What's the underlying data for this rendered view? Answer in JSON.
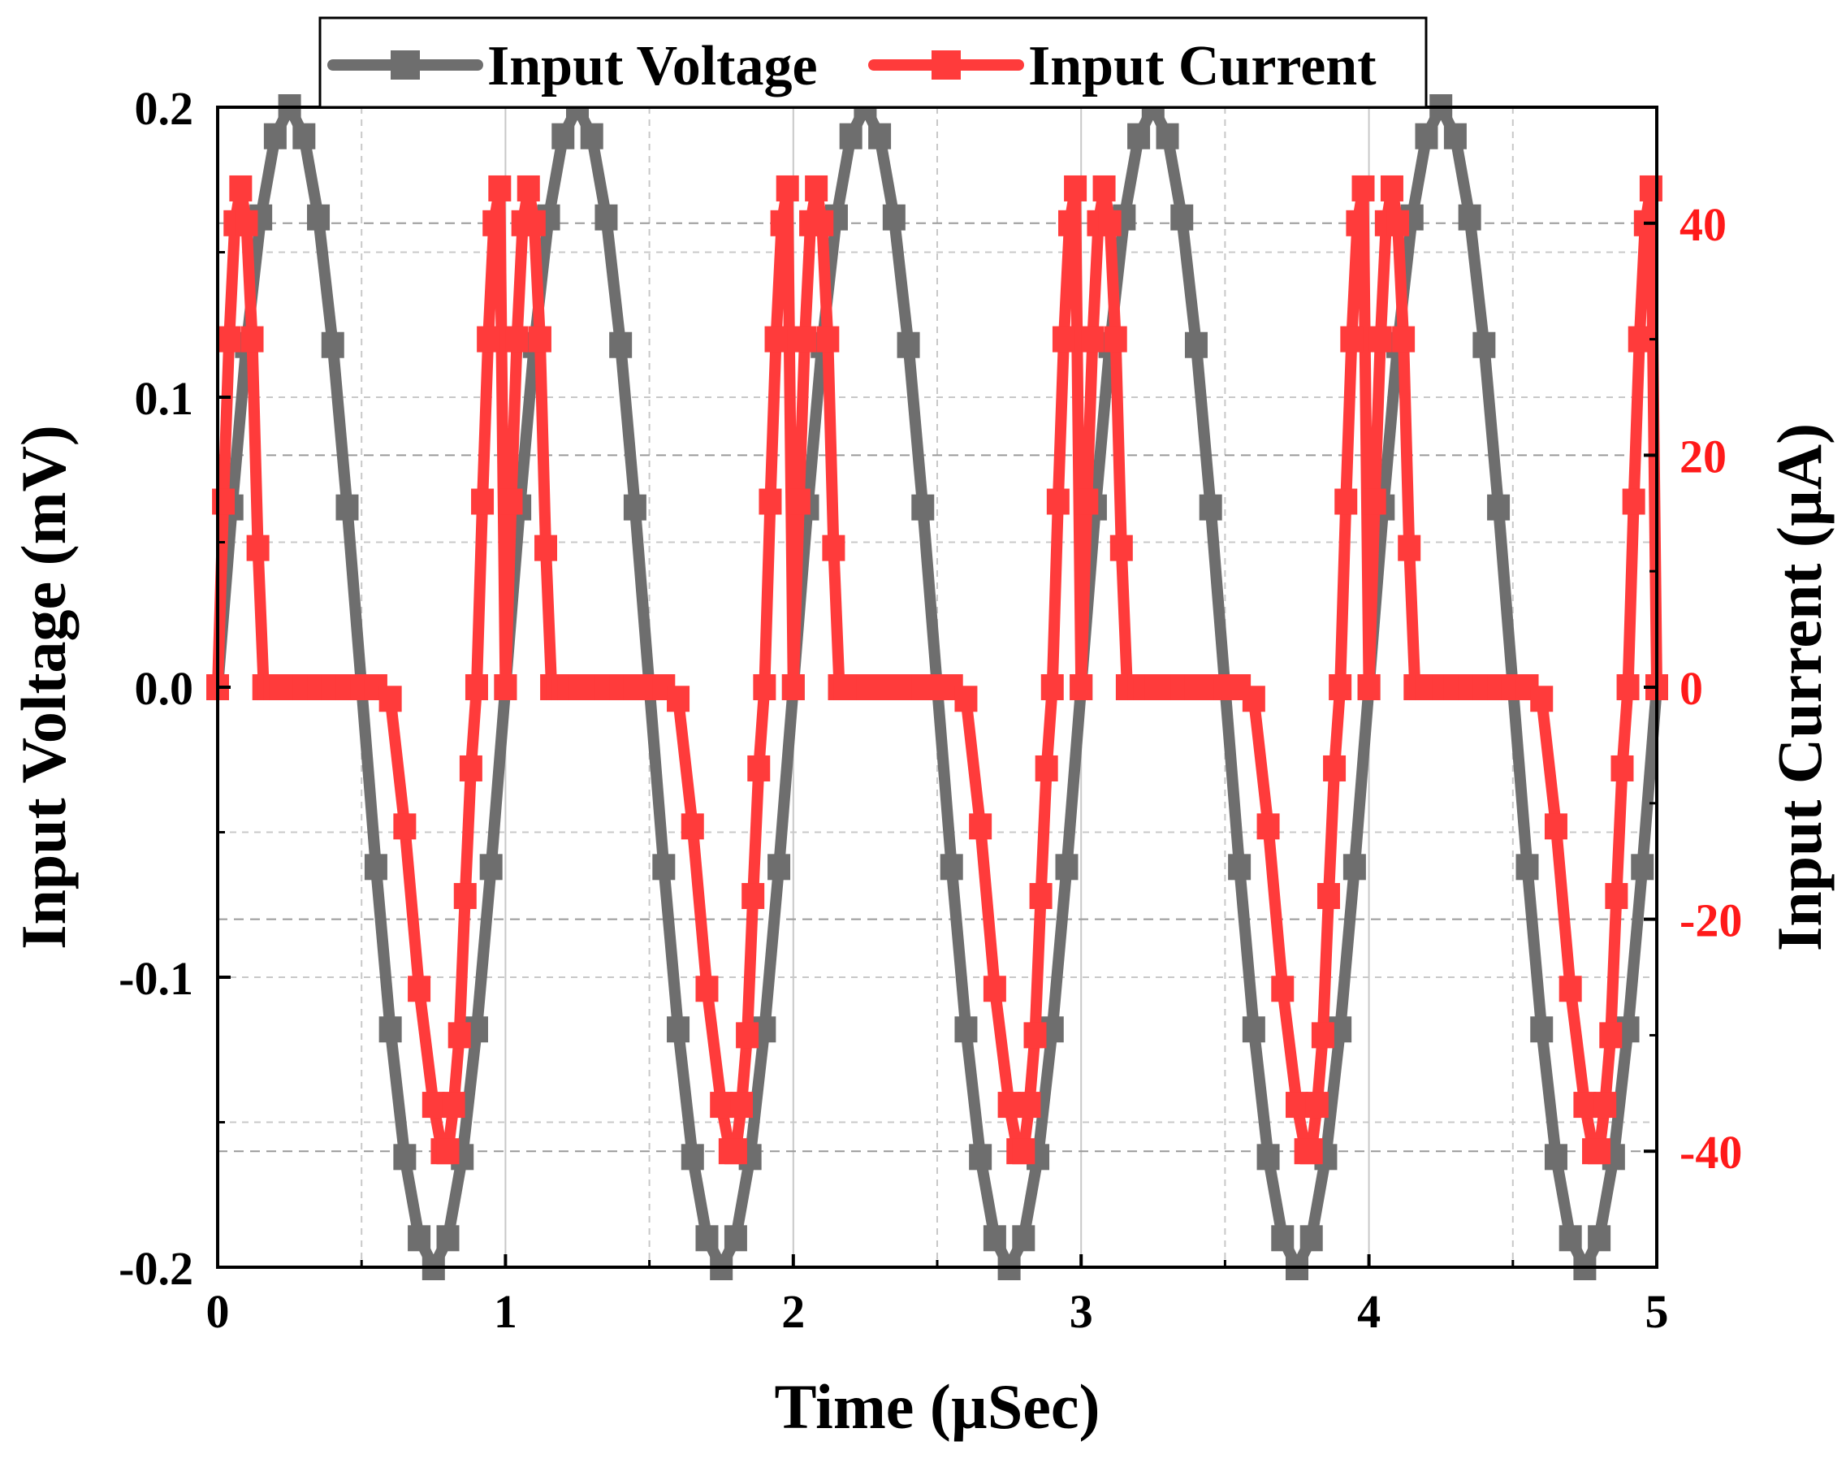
{
  "chart_data": {
    "type": "line",
    "title": "",
    "xlabel": "Time (µSec)",
    "ylabel_left": "Input Voltage (mV)",
    "ylabel_right": "Input Current (µA)",
    "xlim": [
      0,
      5
    ],
    "ylim_left": [
      -0.2,
      0.2
    ],
    "ylim_right": [
      -50,
      50
    ],
    "x_ticks": [
      "0",
      "1",
      "2",
      "3",
      "4",
      "5"
    ],
    "y_left_ticks": [
      "0.2",
      "0.1",
      "0.0",
      "-0.1",
      "-0.2"
    ],
    "y_right_ticks": [
      "40",
      "20",
      "0",
      "-20",
      "-40"
    ],
    "grid": true,
    "legend_position": "top",
    "colors": {
      "voltage": "#6e6e6e",
      "current": "#ff3b3b",
      "right_axis_text": "#ff1a1a"
    },
    "series": [
      {
        "name": "Input Voltage",
        "axis": "left",
        "period": 1,
        "cycle_x": [
          0,
          0.05,
          0.1,
          0.15,
          0.2,
          0.25,
          0.3,
          0.35,
          0.4,
          0.45,
          0.5,
          0.55,
          0.6,
          0.65,
          0.7,
          0.75,
          0.8,
          0.85,
          0.9,
          0.95
        ],
        "cycle_y": [
          0,
          0.062,
          0.118,
          0.162,
          0.19,
          0.2,
          0.19,
          0.162,
          0.118,
          0.062,
          0,
          -0.062,
          -0.118,
          -0.162,
          -0.19,
          -0.2,
          -0.19,
          -0.162,
          -0.118,
          -0.062
        ]
      },
      {
        "name": "Input Current",
        "axis": "right",
        "period": 1,
        "cycle_x": [
          0,
          0.02,
          0.04,
          0.06,
          0.08,
          0.1,
          0.12,
          0.14,
          0.16,
          0.18,
          0.2,
          0.22,
          0.26,
          0.3,
          0.35,
          0.4,
          0.45,
          0.5,
          0.55,
          0.6,
          0.65,
          0.7,
          0.75,
          0.78,
          0.8,
          0.82,
          0.84,
          0.86,
          0.88,
          0.9,
          0.92,
          0.94,
          0.96,
          0.98
        ],
        "cycle_y": [
          0,
          16,
          30,
          40,
          43,
          40,
          30,
          12,
          0,
          0,
          0,
          0,
          0,
          0,
          0,
          0,
          0,
          0,
          0,
          -1,
          -12,
          -26,
          -36,
          -40,
          -40,
          -36,
          -30,
          -18,
          -7,
          0,
          16,
          30,
          40,
          43
        ]
      }
    ]
  }
}
